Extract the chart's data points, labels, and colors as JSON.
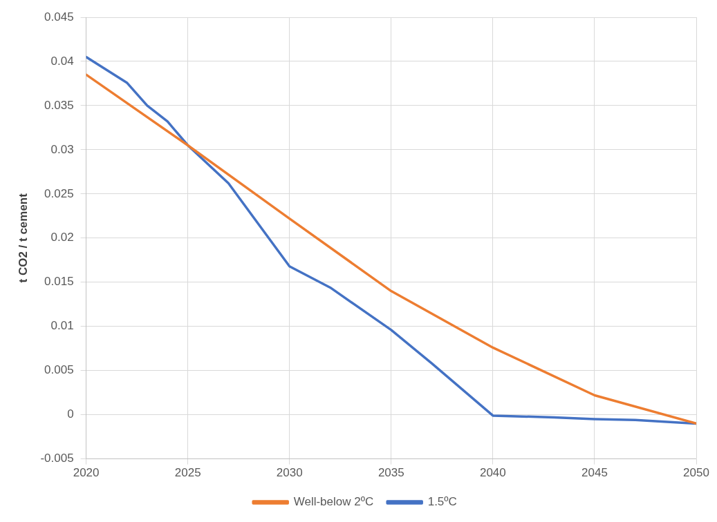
{
  "chart_data": {
    "type": "line",
    "ylabel": "t CO2 / t cement",
    "xlim": [
      2020,
      2050
    ],
    "xticks": [
      2020,
      2025,
      2030,
      2035,
      2040,
      2045,
      2050
    ],
    "ylim": [
      -0.005,
      0.045
    ],
    "yticks": [
      -0.005,
      0,
      0.005,
      0.01,
      0.015,
      0.02,
      0.025,
      0.03,
      0.035,
      0.04,
      0.045
    ],
    "grid": true,
    "legend": "bottom",
    "marker": "none",
    "line_style": "solid",
    "series": [
      {
        "name": "Well-below 2ºC",
        "color": "#ed7d31",
        "x": [
          2020,
          2025,
          2030,
          2035,
          2040,
          2045,
          2050
        ],
        "values": [
          0.0385,
          0.0305,
          0.0222,
          0.014,
          0.0076,
          0.0022,
          -0.001
        ]
      },
      {
        "name": "1.5ºC",
        "color": "#4472c4",
        "x": [
          2020,
          2022,
          2023,
          2024,
          2025,
          2027,
          2030,
          2032,
          2035,
          2037,
          2040,
          2043,
          2045,
          2047,
          2050
        ],
        "values": [
          0.0405,
          0.0376,
          0.035,
          0.0332,
          0.0305,
          0.0262,
          0.0168,
          0.0144,
          0.0096,
          0.0058,
          -0.0001,
          -0.0003,
          -0.0005,
          -0.0006,
          -0.001
        ]
      }
    ]
  }
}
